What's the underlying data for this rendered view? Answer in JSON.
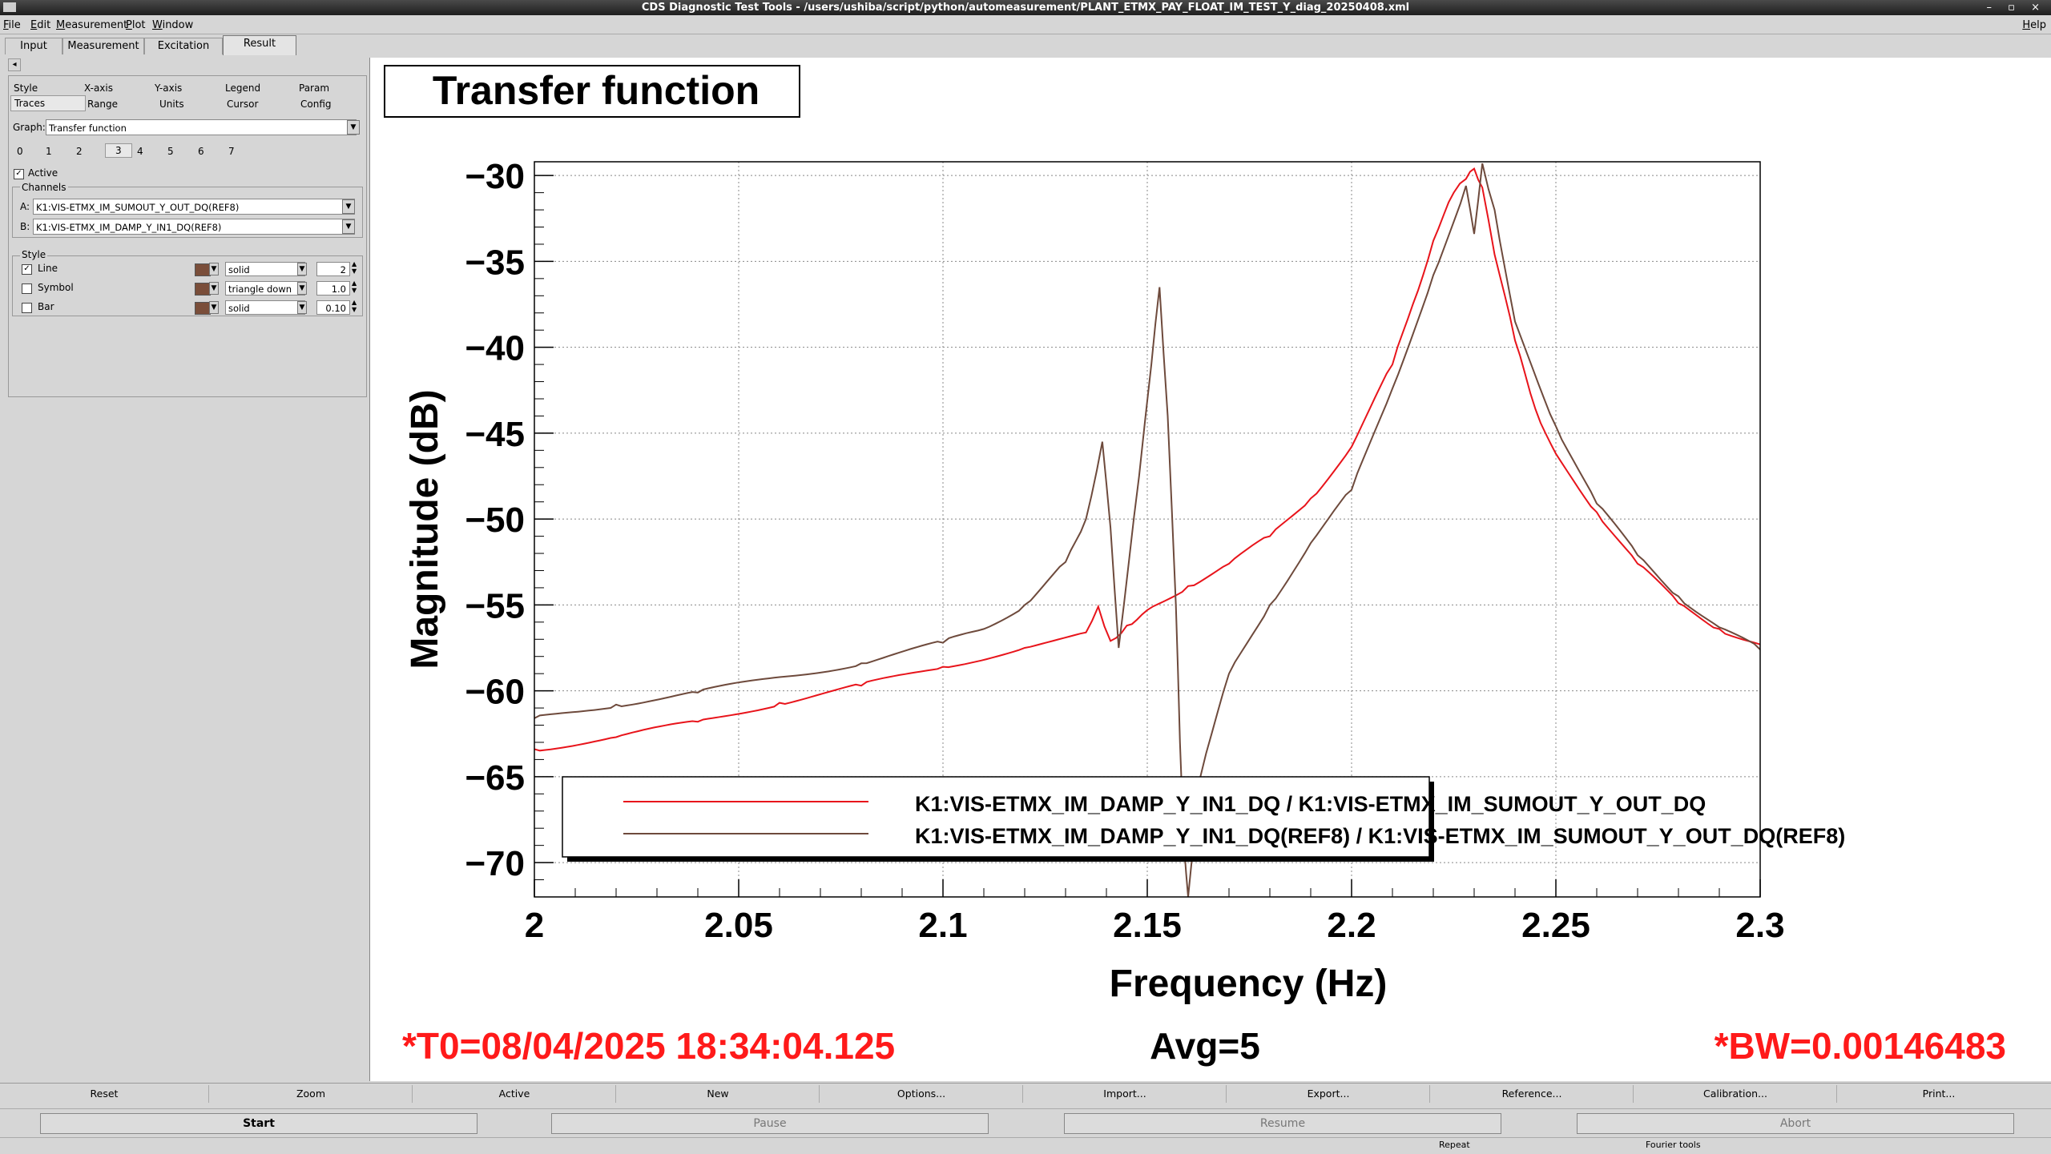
{
  "window": {
    "title": "CDS Diagnostic Test Tools - /users/ushiba/script/python/automeasurement/PLANT_ETMX_PAY_FLOAT_IM_TEST_Y_diag_20250408.xml",
    "controls": "– ▫ ×"
  },
  "menu": [
    "File",
    "Edit",
    "Measurement",
    "Plot",
    "Window"
  ],
  "help_label": "Help",
  "main_tabs": [
    "Input",
    "Measurement",
    "Excitation",
    "Result"
  ],
  "left_arrow": "◂",
  "option_tabs_row1": [
    "Style",
    "X-axis",
    "Y-axis",
    "Legend",
    "Param"
  ],
  "option_tabs_row2": [
    "Traces",
    "Range",
    "Units",
    "Cursor",
    "Config"
  ],
  "graph_label": "Graph:",
  "graph_value": "Transfer function",
  "trace_tabs": [
    "0",
    "1",
    "2",
    "3",
    "4",
    "5",
    "6",
    "7"
  ],
  "active_label": "Active",
  "channels_label": "Channels",
  "channel_a_label": "A:",
  "channel_a": "K1:VIS-ETMX_IM_SUMOUT_Y_OUT_DQ(REF8)",
  "channel_b_label": "B:",
  "channel_b": "K1:VIS-ETMX_IM_DAMP_Y_IN1_DQ(REF8)",
  "style_label": "Style",
  "style_rows": [
    {
      "name": "Line",
      "checked": true,
      "style": "solid",
      "value": "2"
    },
    {
      "name": "Symbol",
      "checked": false,
      "style": "triangle down",
      "value": "1.0"
    },
    {
      "name": "Bar",
      "checked": false,
      "style": "solid",
      "value": "0.10"
    }
  ],
  "bottom_buttons": [
    "Reset",
    "Zoom",
    "Active",
    "New",
    "Options...",
    "Import...",
    "Export...",
    "Reference...",
    "Calibration...",
    "Print..."
  ],
  "control_buttons": [
    "Start",
    "Pause",
    "Resume",
    "Abort"
  ],
  "status": {
    "repeat": "Repeat",
    "fourier": "Fourier tools"
  },
  "info": {
    "t0": "*T0=08/04/2025 18:34:04.125",
    "avg": "Avg=5",
    "bw": "*BW=0.00146483"
  },
  "colors": {
    "series1": "#e8141b",
    "series2": "#6e4a3c",
    "info_red": "#ff1a1a"
  },
  "chart_data": {
    "type": "line",
    "title": "Transfer function",
    "xlabel": "Frequency (Hz)",
    "ylabel": "Magnitude (dB)",
    "xlim": [
      2.0,
      2.3
    ],
    "ylim": [
      -72,
      -29.2
    ],
    "xticks": [
      2,
      2.05,
      2.1,
      2.15,
      2.2,
      2.25,
      2.3
    ],
    "xtick_labels": [
      "2",
      "2.05",
      "2.1",
      "2.15",
      "2.2",
      "2.25",
      "2.3"
    ],
    "yticks": [
      -30,
      -35,
      -40,
      -45,
      -50,
      -55,
      -60,
      -65,
      -70
    ],
    "ytick_labels": [
      "−30",
      "−35",
      "−40",
      "−45",
      "−50",
      "−55",
      "−60",
      "−65",
      "−70"
    ],
    "grid": true,
    "legend_position": "bottom-right",
    "series": [
      {
        "name": "K1:VIS-ETMX_IM_DAMP_Y_IN1_DQ / K1:VIS-ETMX_IM_SUMOUT_Y_OUT_DQ",
        "x": [
          2.0,
          2.02,
          2.04,
          2.06,
          2.08,
          2.1,
          2.12,
          2.135,
          2.138,
          2.141,
          2.145,
          2.15,
          2.16,
          2.17,
          2.18,
          2.19,
          2.2,
          2.21,
          2.215,
          2.22,
          2.225,
          2.228,
          2.23,
          2.232,
          2.235,
          2.24,
          2.245,
          2.25,
          2.26,
          2.27,
          2.28,
          2.29,
          2.3
        ],
        "y": [
          -63.4,
          -62.7,
          -61.8,
          -60.7,
          -59.7,
          -58.6,
          -57.5,
          -56.6,
          -55.1,
          -57.1,
          -56.2,
          -55.3,
          -53.9,
          -52.6,
          -51.0,
          -48.8,
          -45.8,
          -41.0,
          -37.5,
          -33.8,
          -31.0,
          -30.2,
          -29.6,
          -30.7,
          -34.6,
          -39.6,
          -43.6,
          -46.2,
          -49.6,
          -52.6,
          -54.9,
          -56.4,
          -57.3
        ]
      },
      {
        "name": "K1:VIS-ETMX_IM_DAMP_Y_IN1_DQ(REF8) / K1:VIS-ETMX_IM_SUMOUT_Y_OUT_DQ(REF8)",
        "x": [
          2.0,
          2.02,
          2.04,
          2.06,
          2.08,
          2.1,
          2.11,
          2.12,
          2.13,
          2.135,
          2.139,
          2.141,
          2.143,
          2.148,
          2.151,
          2.153,
          2.155,
          2.157,
          2.158,
          2.159,
          2.16,
          2.163,
          2.17,
          2.18,
          2.19,
          2.2,
          2.21,
          2.22,
          2.228,
          2.23,
          2.232,
          2.235,
          2.24,
          2.25,
          2.26,
          2.27,
          2.28,
          2.29,
          2.3
        ],
        "y": [
          -61.6,
          -60.8,
          -60.1,
          -59.2,
          -58.4,
          -57.2,
          -56.4,
          -55.0,
          -52.5,
          -50.0,
          -45.5,
          -50.5,
          -57.5,
          -47.5,
          -41.0,
          -36.5,
          -44.0,
          -55.0,
          -63.0,
          -69.0,
          -72.0,
          -65.0,
          -59.0,
          -55.0,
          -51.4,
          -48.3,
          -42.4,
          -35.8,
          -30.6,
          -33.4,
          -29.3,
          -32.0,
          -38.5,
          -44.6,
          -49.1,
          -52.1,
          -54.5,
          -56.3,
          -57.6
        ]
      }
    ]
  }
}
